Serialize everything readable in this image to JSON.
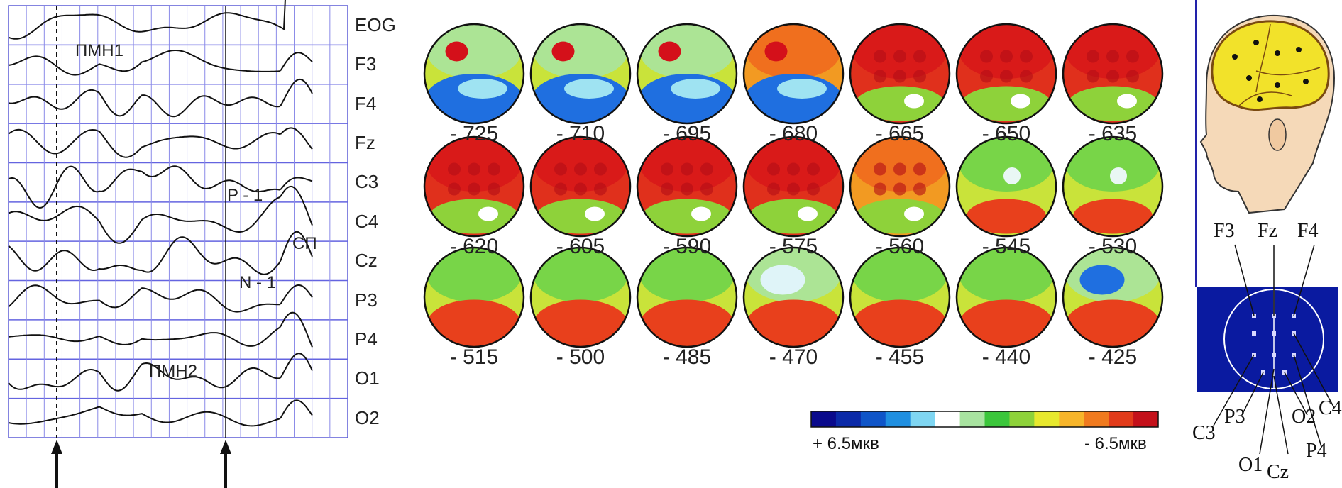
{
  "erp_panel": {
    "channels": [
      "EOG",
      "F3",
      "F4",
      "Fz",
      "C3",
      "C4",
      "Cz",
      "P3",
      "P4",
      "O1",
      "O2"
    ],
    "annotations": [
      "ПМН1",
      "P - 1",
      "СП",
      "N - 1",
      "ПМН2"
    ]
  },
  "maps": {
    "rows": [
      {
        "labels": [
          "- 725",
          "- 710",
          "- 695",
          "- 680",
          "- 665",
          "- 650",
          "- 635"
        ],
        "fronts": [
          0.62,
          0.6,
          0.6,
          0.48,
          0.0,
          0.0,
          0.0
        ],
        "hots": [
          0.3,
          0.3,
          0.4,
          0.5,
          0.9,
          0.9,
          0.8
        ],
        "colds": [
          0.85,
          0.85,
          0.8,
          0.6,
          0.1,
          0.15,
          0.3
        ]
      },
      {
        "labels": [
          "- 620",
          "- 605",
          "- 590",
          "- 575",
          "- 560",
          "- 545",
          "- 530"
        ],
        "fronts": [
          0.0,
          0.0,
          0.0,
          0.0,
          0.0,
          0.0,
          0.0
        ],
        "hots": [
          0.95,
          0.95,
          0.9,
          0.8,
          0.7,
          0.35,
          0.25
        ],
        "colds": [
          0.1,
          0.1,
          0.1,
          0.15,
          0.2,
          0.3,
          0.35
        ]
      },
      {
        "labels": [
          "- 515",
          "- 500",
          "- 485",
          "- 470",
          "- 455",
          "- 440",
          "- 425"
        ],
        "fronts": [
          0.0,
          0.0,
          0.0,
          0.0,
          0.0,
          0.0,
          0.0
        ],
        "hots": [
          0.2,
          0.2,
          0.2,
          0.2,
          0.2,
          0.2,
          0.2
        ],
        "colds": [
          0.3,
          0.25,
          0.3,
          0.55,
          0.4,
          0.3,
          0.65
        ]
      }
    ]
  },
  "colorbar": {
    "left_label": "+ 6.5мкв",
    "right_label": "- 6.5мкв",
    "colors": [
      "#0a0a8c",
      "#0b2aa8",
      "#0f55c8",
      "#1f8fe0",
      "#7fd6f2",
      "#ffffff",
      "#a8e3a0",
      "#3bc63b",
      "#8ed23a",
      "#e7e82d",
      "#f7b52a",
      "#f07a1e",
      "#e23b1a",
      "#c4101a"
    ]
  },
  "electrodes": {
    "top_labels": [
      "F3",
      "Fz",
      "F4"
    ],
    "bottom_labels": [
      "C3",
      "P3",
      "O1",
      "Cz",
      "O2",
      "P4",
      "C4"
    ]
  }
}
